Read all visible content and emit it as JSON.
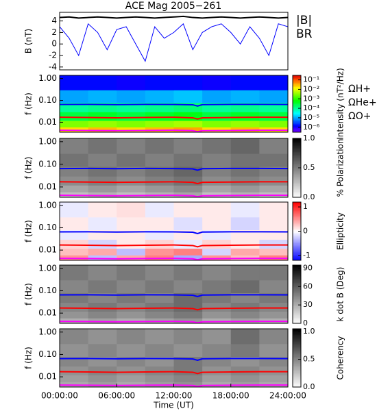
{
  "title": "ACE Mag 2005−261",
  "cyclotron_lines": {
    "x": [
      0,
      3,
      6,
      9,
      12,
      14,
      14.5,
      15,
      18,
      21,
      24
    ],
    "series": [
      {
        "name": "ΩH+",
        "color": "#0000ff",
        "values": [
          0.065,
          0.066,
          0.064,
          0.066,
          0.065,
          0.063,
          0.055,
          0.064,
          0.066,
          0.066,
          0.065
        ]
      },
      {
        "name": "ΩHe+",
        "color": "#ff0000",
        "values": [
          0.017,
          0.0165,
          0.016,
          0.0165,
          0.017,
          0.016,
          0.014,
          0.016,
          0.0165,
          0.017,
          0.017
        ]
      },
      {
        "name": "ΩO+",
        "color": "#ff00ff",
        "values": [
          0.0043,
          0.0042,
          0.0041,
          0.0042,
          0.0043,
          0.0041,
          0.0037,
          0.0041,
          0.0042,
          0.0043,
          0.0043
        ]
      }
    ]
  },
  "chart_data": [
    {
      "type": "line",
      "ylabel": "B (nT)",
      "xlim": [
        0,
        24
      ],
      "ylim": [
        -4.5,
        5.5
      ],
      "yticks": [
        -4,
        -2,
        0,
        2,
        4
      ],
      "x": [
        0,
        1,
        2,
        3,
        4,
        5,
        6,
        7,
        8,
        9,
        10,
        11,
        12,
        13,
        14,
        15,
        16,
        17,
        18,
        19,
        20,
        21,
        22,
        23,
        24
      ],
      "series": [
        {
          "name": "|B|",
          "color": "#000000",
          "values": [
            4.6,
            4.7,
            4.5,
            4.6,
            4.7,
            4.6,
            4.5,
            4.6,
            4.7,
            4.6,
            4.5,
            4.6,
            4.7,
            4.8,
            4.6,
            4.5,
            4.6,
            4.7,
            4.6,
            4.5,
            4.6,
            4.7,
            4.6,
            4.5,
            4.6
          ]
        },
        {
          "name": "BR",
          "color": "#0000ff",
          "values": [
            3,
            1,
            -2,
            3.5,
            2,
            -1,
            2.5,
            3,
            0,
            -3,
            3,
            1,
            2,
            3.5,
            -1,
            2,
            3,
            3.5,
            2,
            0,
            3,
            1,
            -2,
            3.5,
            3
          ]
        }
      ]
    },
    {
      "type": "heatmap",
      "ylabel": "f (Hz)",
      "ylog": true,
      "xlim": [
        0,
        24
      ],
      "ylim": [
        0.0035,
        1.4
      ],
      "yticks": [
        0.01,
        {
          "value": 0.1,
          "label": "0.10"
        },
        {
          "value": 1,
          "label": "1.00"
        }
      ],
      "x_edges": [
        0,
        3,
        6,
        9,
        12,
        15,
        18,
        21,
        24
      ],
      "y_edges": [
        0.0035,
        0.006,
        0.012,
        0.03,
        0.08,
        0.3,
        1.4
      ],
      "z": [
        [
          0.02,
          0.03,
          0.02,
          0.03,
          0.04,
          0.02,
          0.03,
          0.02
        ],
        [
          0.003,
          0.004,
          0.003,
          0.004,
          0.005,
          0.003,
          0.004,
          0.003
        ],
        [
          0.0003,
          0.0004,
          0.0003,
          0.0004,
          0.0005,
          0.0003,
          0.0004,
          0.0003
        ],
        [
          0.0001,
          0.00012,
          0.0001,
          0.00012,
          0.00015,
          0.0001,
          0.00012,
          0.0001
        ],
        [
          1e-05,
          1.2e-05,
          1e-05,
          1.2e-05,
          1.5e-05,
          1e-05,
          1.2e-05,
          1e-05
        ],
        [
          1.5e-06,
          1.5e-06,
          1.2e-06,
          1.5e-06,
          1.5e-06,
          1.2e-06,
          1.5e-06,
          1.5e-06
        ]
      ],
      "colormap": "rainbow",
      "clog": true,
      "clim": [
        3e-07,
        0.3
      ],
      "cticks": [
        {
          "value": 0.1,
          "label": "10⁻¹"
        },
        {
          "value": 0.01,
          "label": "10⁻²"
        },
        {
          "value": 0.001,
          "label": "10⁻³"
        },
        {
          "value": 0.0001,
          "label": "10⁻⁴"
        },
        {
          "value": 1e-05,
          "label": "10⁻⁵"
        },
        {
          "value": 1e-06,
          "label": "10⁻⁶"
        }
      ],
      "clabel": "Intensity (nT²/Hz)"
    },
    {
      "type": "heatmap",
      "ylabel": "f (Hz)",
      "ylog": true,
      "xlim": [
        0,
        24
      ],
      "ylim": [
        0.0035,
        1.4
      ],
      "yticks": [
        0.01,
        {
          "value": 0.1,
          "label": "0.10"
        },
        {
          "value": 1,
          "label": "1.00"
        }
      ],
      "x_edges": [
        0,
        3,
        6,
        9,
        12,
        15,
        18,
        21,
        24
      ],
      "y_edges": [
        0.0035,
        0.006,
        0.012,
        0.03,
        0.08,
        0.3,
        1.4
      ],
      "z": [
        [
          0.25,
          0.3,
          0.25,
          0.3,
          0.35,
          0.25,
          0.3,
          0.25
        ],
        [
          0.35,
          0.4,
          0.35,
          0.4,
          0.45,
          0.35,
          0.4,
          0.35
        ],
        [
          0.45,
          0.5,
          0.45,
          0.5,
          0.55,
          0.45,
          0.5,
          0.45
        ],
        [
          0.5,
          0.55,
          0.5,
          0.55,
          0.6,
          0.5,
          0.55,
          0.5
        ],
        [
          0.55,
          0.5,
          0.55,
          0.5,
          0.55,
          0.5,
          0.55,
          0.55
        ],
        [
          0.5,
          0.55,
          0.5,
          0.55,
          0.5,
          0.55,
          0.6,
          0.5
        ]
      ],
      "colormap": "gray_r",
      "clog": false,
      "clim": [
        0,
        1
      ],
      "cticks": [
        {
          "value": 0,
          "label": "0.0"
        },
        0.5,
        {
          "value": 1,
          "label": "1.0"
        }
      ],
      "clabel": "% Polarization"
    },
    {
      "type": "heatmap",
      "ylabel": "f (Hz)",
      "ylog": true,
      "xlim": [
        0,
        24
      ],
      "ylim": [
        0.0035,
        1.4
      ],
      "yticks": [
        0.01,
        {
          "value": 0.1,
          "label": "0.10"
        },
        {
          "value": 1,
          "label": "1.00"
        }
      ],
      "x_edges": [
        0,
        3,
        6,
        9,
        12,
        15,
        18,
        21,
        24
      ],
      "y_edges": [
        0.0035,
        0.006,
        0.012,
        0.03,
        0.08,
        0.3,
        1.4
      ],
      "z": [
        [
          0.5,
          -0.3,
          0.4,
          0.6,
          -0.4,
          0.5,
          0.3,
          0.6
        ],
        [
          0.3,
          0.4,
          -0.3,
          0.5,
          0.6,
          -0.2,
          0.4,
          0.3
        ],
        [
          0.2,
          -0.2,
          0.1,
          0.2,
          -0.1,
          0.2,
          0.1,
          -0.2
        ],
        [
          -0.1,
          0.1,
          0.1,
          -0.1,
          0.1,
          -0.1,
          0.1,
          0.1
        ],
        [
          0.1,
          -0.1,
          0.1,
          0.1,
          -0.15,
          0.1,
          -0.2,
          0.1
        ],
        [
          -0.1,
          0.1,
          0.15,
          -0.1,
          0.1,
          0.1,
          -0.1,
          0.1
        ]
      ],
      "colormap": "bwr",
      "clog": false,
      "clim": [
        -1.2,
        1.2
      ],
      "cticks": [
        1,
        0,
        -1
      ],
      "clabel": "Ellipticity"
    },
    {
      "type": "heatmap",
      "ylabel": "f (Hz)",
      "ylog": true,
      "xlim": [
        0,
        24
      ],
      "ylim": [
        0.0035,
        1.4
      ],
      "yticks": [
        0.01,
        {
          "value": 0.1,
          "label": "0.10"
        },
        {
          "value": 1,
          "label": "1.00"
        }
      ],
      "x_edges": [
        0,
        3,
        6,
        9,
        12,
        15,
        18,
        21,
        24
      ],
      "y_edges": [
        0.0035,
        0.006,
        0.012,
        0.03,
        0.08,
        0.3,
        1.4
      ],
      "z": [
        [
          30,
          35,
          30,
          35,
          40,
          30,
          35,
          30
        ],
        [
          40,
          45,
          40,
          45,
          50,
          40,
          45,
          40
        ],
        [
          45,
          50,
          45,
          50,
          55,
          45,
          50,
          45
        ],
        [
          50,
          45,
          50,
          45,
          55,
          50,
          45,
          50
        ],
        [
          45,
          50,
          45,
          50,
          45,
          50,
          55,
          45
        ],
        [
          50,
          45,
          50,
          45,
          50,
          45,
          50,
          50
        ]
      ],
      "colormap": "gray_r",
      "clog": false,
      "clim": [
        0,
        95
      ],
      "cticks": [
        0,
        30,
        60,
        90
      ],
      "clabel": "k dot B (Deg)"
    },
    {
      "type": "heatmap",
      "ylabel": "f (Hz)",
      "ylog": true,
      "xlim": [
        0,
        24
      ],
      "ylim": [
        0.0035,
        1.4
      ],
      "yticks": [
        0.01,
        {
          "value": 0.1,
          "label": "0.10"
        },
        {
          "value": 1,
          "label": "1.00"
        }
      ],
      "x_edges": [
        0,
        3,
        6,
        9,
        12,
        15,
        18,
        21,
        24
      ],
      "y_edges": [
        0.0035,
        0.006,
        0.012,
        0.03,
        0.08,
        0.3,
        1.4
      ],
      "z": [
        [
          0.35,
          0.4,
          0.35,
          0.4,
          0.45,
          0.35,
          0.4,
          0.35
        ],
        [
          0.4,
          0.45,
          0.4,
          0.45,
          0.5,
          0.4,
          0.45,
          0.4
        ],
        [
          0.45,
          0.5,
          0.45,
          0.5,
          0.55,
          0.45,
          0.5,
          0.45
        ],
        [
          0.5,
          0.45,
          0.5,
          0.45,
          0.55,
          0.5,
          0.45,
          0.5
        ],
        [
          0.45,
          0.5,
          0.45,
          0.5,
          0.45,
          0.5,
          0.55,
          0.45
        ],
        [
          0.5,
          0.45,
          0.5,
          0.45,
          0.5,
          0.45,
          0.6,
          0.5
        ]
      ],
      "colormap": "gray_r",
      "clog": false,
      "clim": [
        0,
        1.05
      ],
      "cticks": [
        {
          "value": 0,
          "label": "0.0"
        },
        0.5,
        {
          "value": 1,
          "label": "1.0"
        }
      ],
      "clabel": "Coherency",
      "xlabel": "Time (UT)",
      "xticks": [
        {
          "value": 0,
          "label": "00:00:00"
        },
        {
          "value": 6,
          "label": "06:00:00"
        },
        {
          "value": 12,
          "label": "12:00:00"
        },
        {
          "value": 18,
          "label": "18:00:00"
        },
        {
          "value": 24,
          "label": "24:00:00"
        }
      ]
    }
  ]
}
